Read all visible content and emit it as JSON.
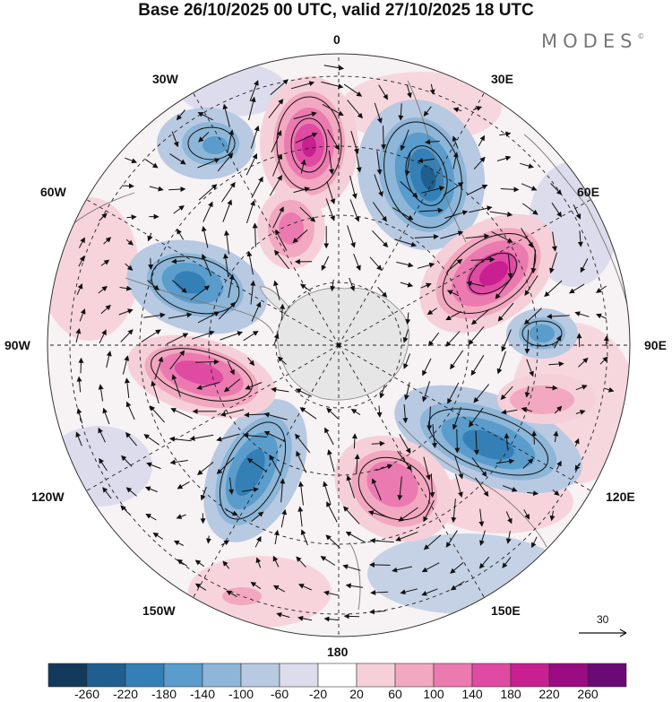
{
  "header": {
    "title": "Base 26/10/2025 00 UTC, valid 27/10/2025 18 UTC",
    "brand": "MODES",
    "brand_mark": "©"
  },
  "longitude_labels": {
    "lon_0": "0",
    "lon_30e": "30E",
    "lon_60e": "60E",
    "lon_90e": "90E",
    "lon_120e": "120E",
    "lon_150e": "150E",
    "lon_180": "180",
    "lon_150w": "150W",
    "lon_120w": "120W",
    "lon_90w": "90W",
    "lon_60w": "60W",
    "lon_30w": "30W"
  },
  "reference_vector": {
    "label": "30"
  },
  "colorbar": {
    "tick_labels": [
      "-260",
      "-220",
      "-180",
      "-140",
      "-100",
      "-60",
      "-20",
      "20",
      "60",
      "100",
      "140",
      "180",
      "220",
      "260"
    ],
    "colors": [
      "#13395b",
      "#1f5f8f",
      "#3480b6",
      "#5a9ccb",
      "#8db6d8",
      "#b8c9e2",
      "#dcdcec",
      "#ffffff",
      "#f6d0d8",
      "#f2a8c0",
      "#eb7ab0",
      "#df4aa2",
      "#c82091",
      "#9a0c82",
      "#6a0a74"
    ]
  },
  "map_features": {
    "land_color": "#e6e6e6",
    "positive_anomaly": "#df4aa2",
    "negative_anomaly": "#3480b6"
  }
}
